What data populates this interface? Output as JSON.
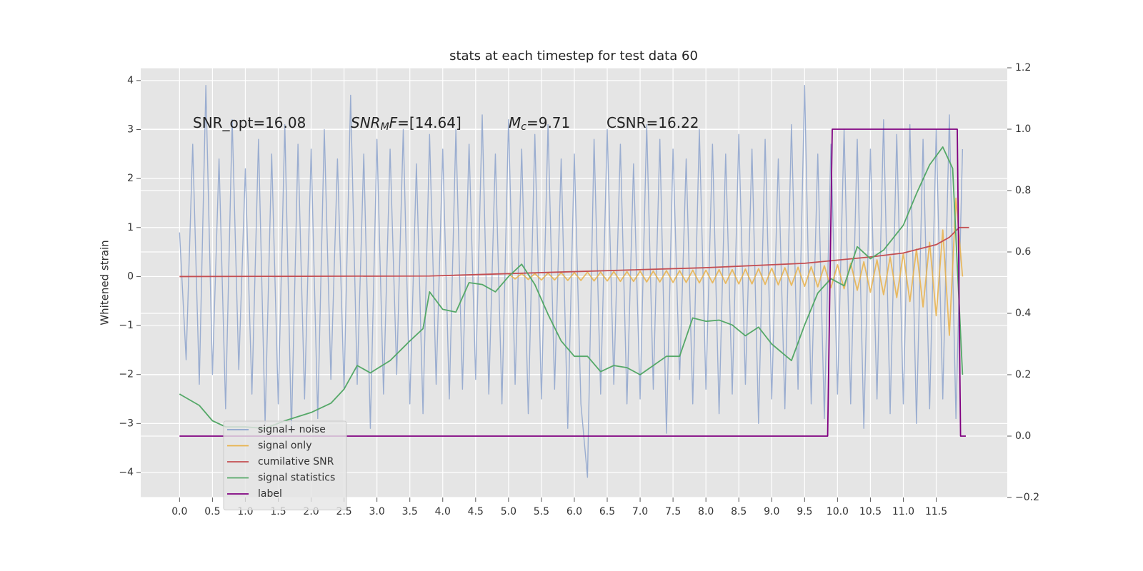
{
  "chart_data": {
    "type": "line",
    "title": "stats at each timestep for test data 60",
    "y_label": "Whitened strain",
    "xlim": [
      -0.59,
      12.58
    ],
    "ylim": [
      -4.51,
      4.26
    ],
    "y2lim": [
      -0.2,
      1.2
    ],
    "grid": true,
    "legend": "lower left",
    "background": "#e5e5e5",
    "xticks": [
      {
        "value": 0,
        "label": "0.0"
      },
      {
        "value": 0.5,
        "label": "0.5"
      },
      {
        "value": 1,
        "label": "1.0"
      },
      {
        "value": 1.5,
        "label": "1.5"
      },
      {
        "value": 2,
        "label": "2.0"
      },
      {
        "value": 2.5,
        "label": "2.5"
      },
      {
        "value": 3,
        "label": "3.0"
      },
      {
        "value": 3.5,
        "label": "3.5"
      },
      {
        "value": 4,
        "label": "4.0"
      },
      {
        "value": 4.5,
        "label": "4.5"
      },
      {
        "value": 5,
        "label": "5.0"
      },
      {
        "value": 5.5,
        "label": "5.5"
      },
      {
        "value": 6,
        "label": "6.0"
      },
      {
        "value": 6.5,
        "label": "6.5"
      },
      {
        "value": 7,
        "label": "7.0"
      },
      {
        "value": 7.5,
        "label": "7.5"
      },
      {
        "value": 8,
        "label": "8.0"
      },
      {
        "value": 8.5,
        "label": "8.5"
      },
      {
        "value": 9,
        "label": "9.0"
      },
      {
        "value": 9.5,
        "label": "9.5"
      },
      {
        "value": 10,
        "label": "10.0"
      },
      {
        "value": 10.5,
        "label": "10.5"
      },
      {
        "value": 11,
        "label": "11.0"
      },
      {
        "value": 11.5,
        "label": "11.5"
      }
    ],
    "yticks": [
      {
        "value": -4,
        "label": "−4"
      },
      {
        "value": -3,
        "label": "−3"
      },
      {
        "value": -2,
        "label": "−2"
      },
      {
        "value": -1,
        "label": "−1"
      },
      0,
      1,
      2,
      3,
      4
    ],
    "y2ticks": [
      {
        "value": -0.2,
        "label": "−0.2"
      },
      {
        "value": 0,
        "label": "0.0"
      },
      {
        "value": 0.2,
        "label": "0.2"
      },
      {
        "value": 0.4,
        "label": "0.4"
      },
      {
        "value": 0.6,
        "label": "0.6"
      },
      {
        "value": 0.8,
        "label": "0.8"
      },
      {
        "value": 1,
        "label": "1.0"
      },
      {
        "value": 1.2,
        "label": "1.2"
      }
    ],
    "annotations": [
      {
        "segments": [
          {
            "text": "SNR_opt=16.08",
            "style": "normal"
          }
        ]
      },
      {
        "segments": [
          {
            "text": "SNR",
            "style": "italic"
          },
          {
            "text": "M",
            "style": "sub"
          },
          {
            "text": "F",
            "style": "italic"
          },
          {
            "text": "=[14.64]",
            "style": "normal"
          }
        ]
      },
      {
        "segments": [
          {
            "text": "M",
            "style": "italic"
          },
          {
            "text": "c",
            "style": "sub"
          },
          {
            "text": "=9.71",
            "style": "normal"
          }
        ]
      },
      {
        "segments": [
          {
            "text": "CSNR=16.22",
            "style": "normal"
          }
        ]
      }
    ],
    "series": [
      {
        "name": "signal+ noise",
        "color": "#8da3cc",
        "axis": "y",
        "x": [
          0,
          0.1,
          0.2,
          0.3,
          0.4,
          0.5,
          0.6,
          0.7,
          0.8,
          0.9,
          1,
          1.1,
          1.2,
          1.3,
          1.4,
          1.5,
          1.6,
          1.7,
          1.8,
          1.9,
          2,
          2.1,
          2.2,
          2.3,
          2.4,
          2.5,
          2.6,
          2.7,
          2.8,
          2.9,
          3,
          3.1,
          3.2,
          3.3,
          3.4,
          3.5,
          3.6,
          3.7,
          3.8,
          3.9,
          4,
          4.1,
          4.2,
          4.3,
          4.4,
          4.5,
          4.6,
          4.7,
          4.8,
          4.9,
          5,
          5.1,
          5.2,
          5.3,
          5.4,
          5.5,
          5.6,
          5.7,
          5.8,
          5.9,
          6,
          6.1,
          6.2,
          6.3,
          6.4,
          6.5,
          6.6,
          6.7,
          6.8,
          6.9,
          7,
          7.1,
          7.2,
          7.3,
          7.4,
          7.5,
          7.6,
          7.7,
          7.8,
          7.9,
          8,
          8.1,
          8.2,
          8.3,
          8.4,
          8.5,
          8.6,
          8.7,
          8.8,
          8.9,
          9,
          9.1,
          9.2,
          9.3,
          9.4,
          9.5,
          9.6,
          9.7,
          9.8,
          9.9,
          10,
          10.1,
          10.2,
          10.3,
          10.4,
          10.5,
          10.6,
          10.7,
          10.8,
          10.9,
          11,
          11.1,
          11.2,
          11.3,
          11.4,
          11.5,
          11.6,
          11.7,
          11.8,
          11.9
        ],
        "values": [
          0.9,
          -1.7,
          2.7,
          -2.2,
          3.9,
          -2.0,
          2.4,
          -2.7,
          3.2,
          -1.9,
          2.2,
          -2.4,
          2.8,
          -3.0,
          2.5,
          -2.6,
          3.1,
          -3.2,
          2.7,
          -2.5,
          2.6,
          -2.9,
          3.0,
          -2.1,
          2.4,
          -2.3,
          3.7,
          -2.2,
          2.5,
          -3.1,
          2.8,
          -2.4,
          2.6,
          -2.0,
          3.0,
          -2.6,
          2.3,
          -2.8,
          2.9,
          -2.2,
          2.6,
          -2.5,
          3.0,
          -2.3,
          2.7,
          -2.1,
          3.3,
          -2.4,
          2.5,
          -2.6,
          3.2,
          -2.2,
          2.6,
          -2.8,
          2.9,
          -2.5,
          3.1,
          -2.3,
          2.4,
          -3.1,
          2.5,
          -2.6,
          -4.1,
          2.8,
          -2.4,
          3.0,
          -2.2,
          2.7,
          -2.6,
          2.3,
          -2.5,
          3.1,
          -2.3,
          2.8,
          -3.2,
          2.6,
          -2.1,
          2.4,
          -2.6,
          3.0,
          -2.3,
          2.7,
          -2.8,
          2.5,
          -2.4,
          2.9,
          -2.2,
          2.6,
          -3.0,
          2.8,
          -2.5,
          2.4,
          -2.7,
          3.1,
          -2.3,
          3.9,
          -2.6,
          2.5,
          -2.9,
          2.7,
          -2.4,
          3.0,
          -2.6,
          2.8,
          -3.1,
          2.6,
          -2.5,
          3.2,
          -2.8,
          2.9,
          -2.6,
          3.1,
          -3.0,
          2.8,
          -2.7,
          3.0,
          -2.5,
          3.3,
          -2.9,
          2.6
        ]
      },
      {
        "name": "signal only",
        "color": "#e9b24a",
        "axis": "y",
        "x": [
          5,
          5.1,
          5.2,
          5.3,
          5.4,
          5.5,
          5.6,
          5.7,
          5.8,
          5.9,
          6,
          6.1,
          6.2,
          6.3,
          6.4,
          6.5,
          6.6,
          6.7,
          6.8,
          6.9,
          7,
          7.1,
          7.2,
          7.3,
          7.4,
          7.5,
          7.6,
          7.7,
          7.8,
          7.9,
          8,
          8.1,
          8.2,
          8.3,
          8.4,
          8.5,
          8.6,
          8.7,
          8.8,
          8.9,
          9,
          9.1,
          9.2,
          9.3,
          9.4,
          9.5,
          9.6,
          9.7,
          9.8,
          9.9,
          10,
          10.1,
          10.2,
          10.3,
          10.4,
          10.5,
          10.6,
          10.7,
          10.8,
          10.9,
          11,
          11.1,
          11.2,
          11.3,
          11.4,
          11.5,
          11.6,
          11.7,
          11.8,
          11.9
        ],
        "values": [
          0.05,
          -0.05,
          0.06,
          -0.06,
          0.06,
          -0.07,
          0.07,
          -0.07,
          0.08,
          -0.08,
          0.08,
          -0.08,
          0.09,
          -0.09,
          0.09,
          -0.09,
          0.1,
          -0.1,
          0.1,
          -0.1,
          0.11,
          -0.11,
          0.11,
          -0.11,
          0.12,
          -0.12,
          0.12,
          -0.12,
          0.13,
          -0.13,
          0.13,
          -0.13,
          0.14,
          -0.14,
          0.14,
          -0.15,
          0.15,
          -0.15,
          0.16,
          -0.16,
          0.17,
          -0.17,
          0.18,
          -0.18,
          0.19,
          -0.2,
          0.2,
          -0.21,
          0.22,
          -0.23,
          0.24,
          -0.25,
          0.27,
          -0.28,
          0.3,
          -0.32,
          0.34,
          -0.37,
          0.4,
          -0.43,
          0.47,
          -0.51,
          0.56,
          -0.62,
          0.7,
          -0.8,
          0.95,
          -1.2,
          1.6,
          0.0
        ]
      },
      {
        "name": "cumilative SNR",
        "color": "#c44e52",
        "axis": "y",
        "x": [
          0,
          3.8,
          6,
          8,
          9.5,
          10.5,
          11,
          11.5,
          11.7,
          11.85,
          12
        ],
        "values": [
          0,
          0.01,
          0.1,
          0.18,
          0.27,
          0.4,
          0.48,
          0.65,
          0.8,
          1.0,
          1.0
        ]
      },
      {
        "name": "signal statistics",
        "color": "#55a868",
        "axis": "y2",
        "x": [
          0,
          0.3,
          0.5,
          0.7,
          1,
          1.3,
          1.6,
          2,
          2.3,
          2.5,
          2.7,
          2.9,
          3.2,
          3.5,
          3.7,
          3.8,
          4,
          4.2,
          4.4,
          4.6,
          4.8,
          5,
          5.2,
          5.4,
          5.6,
          5.8,
          6,
          6.2,
          6.4,
          6.6,
          6.8,
          7,
          7.2,
          7.4,
          7.6,
          7.8,
          8,
          8.2,
          8.4,
          8.6,
          8.8,
          9,
          9.3,
          9.5,
          9.7,
          9.9,
          10.1,
          10.3,
          10.5,
          10.7,
          11,
          11.2,
          11.4,
          11.6,
          11.75,
          11.9
        ],
        "values": [
          0.137,
          0.1,
          0.05,
          0.03,
          0.03,
          0.025,
          0.05,
          0.077,
          0.107,
          0.153,
          0.23,
          0.206,
          0.246,
          0.31,
          0.35,
          0.47,
          0.413,
          0.404,
          0.5,
          0.494,
          0.47,
          0.52,
          0.56,
          0.494,
          0.397,
          0.31,
          0.26,
          0.26,
          0.21,
          0.23,
          0.223,
          0.2,
          0.23,
          0.26,
          0.26,
          0.385,
          0.374,
          0.378,
          0.362,
          0.327,
          0.355,
          0.3,
          0.246,
          0.362,
          0.466,
          0.513,
          0.49,
          0.617,
          0.578,
          0.606,
          0.687,
          0.79,
          0.884,
          0.942,
          0.872,
          0.2
        ]
      },
      {
        "name": "label",
        "color": "#800080",
        "axis": "y2",
        "x": [
          0,
          9.85,
          9.92,
          11.82,
          11.87,
          11.95
        ],
        "values": [
          0,
          0,
          1,
          1,
          0,
          0
        ]
      }
    ]
  }
}
